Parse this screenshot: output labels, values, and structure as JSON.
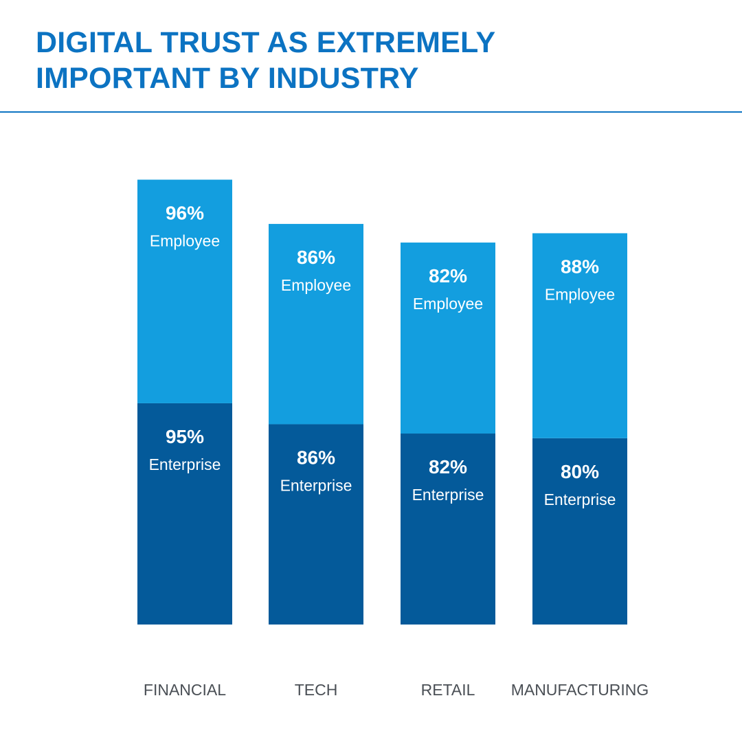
{
  "chart_data": {
    "type": "bar",
    "stacked": true,
    "title_lines": [
      "DIGITAL TRUST AS EXTREMELY",
      "IMPORTANT BY INDUSTRY"
    ],
    "categories": [
      "FINANCIAL",
      "TECH",
      "RETAIL",
      "MANUFACTURING"
    ],
    "series": [
      {
        "name": "Enterprise",
        "values": [
          95,
          86,
          82,
          80
        ],
        "labels": [
          "95%",
          "86%",
          "82%",
          "80%"
        ],
        "color": "#045a9a"
      },
      {
        "name": "Employee",
        "values": [
          96,
          86,
          82,
          88
        ],
        "labels": [
          "96%",
          "86%",
          "82%",
          "88%"
        ],
        "color": "#139edf"
      }
    ],
    "xlabel": "",
    "ylabel": "",
    "grid": false,
    "legend": "none"
  },
  "colors": {
    "title": "#0c73c2",
    "rule": "#0c73c2",
    "category_text": "#4a4f55",
    "segment_text": "#ffffff"
  }
}
